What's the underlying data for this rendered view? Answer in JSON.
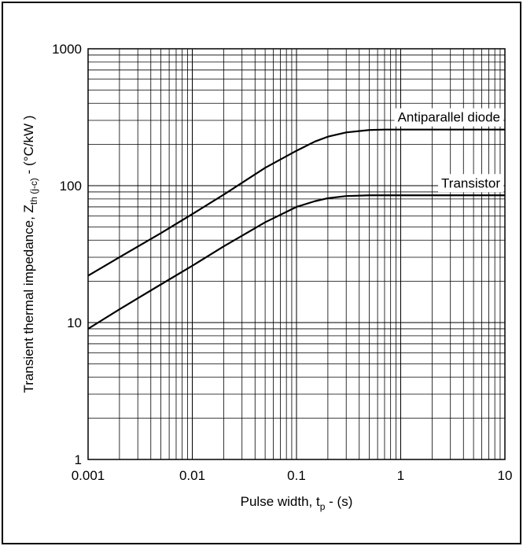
{
  "chart_data": {
    "type": "line",
    "xscale": "log",
    "yscale": "log",
    "xlim": [
      0.001,
      10
    ],
    "ylim": [
      1,
      1000
    ],
    "xticks": [
      "0.001",
      "0.01",
      "0.1",
      "1",
      "10"
    ],
    "yticks": [
      "1",
      "10",
      "100",
      "1000"
    ],
    "grid": true,
    "xlabel": {
      "main": "Pulse width, t",
      "sub": "p",
      "tail": " - (s)"
    },
    "ylabel": {
      "main": "Transient thermal impedance, Z",
      "sub": "th (j-c)",
      "tail": " - (°C/kW )"
    },
    "series": [
      {
        "name": "Antiparallel diode",
        "x": [
          0.001,
          0.002,
          0.005,
          0.01,
          0.02,
          0.05,
          0.1,
          0.15,
          0.2,
          0.3,
          0.5,
          0.7,
          1,
          2,
          5,
          10
        ],
        "y": [
          22,
          30,
          45,
          62,
          86,
          135,
          180,
          210,
          228,
          245,
          255,
          257,
          257,
          257,
          257,
          257
        ]
      },
      {
        "name": "Transistor",
        "x": [
          0.001,
          0.002,
          0.005,
          0.01,
          0.02,
          0.05,
          0.1,
          0.15,
          0.2,
          0.3,
          0.5,
          0.7,
          1,
          2,
          5,
          10
        ],
        "y": [
          9,
          12.5,
          19,
          26,
          36,
          54,
          70,
          77,
          81,
          84,
          85,
          85,
          85,
          85,
          85,
          85
        ]
      }
    ]
  }
}
